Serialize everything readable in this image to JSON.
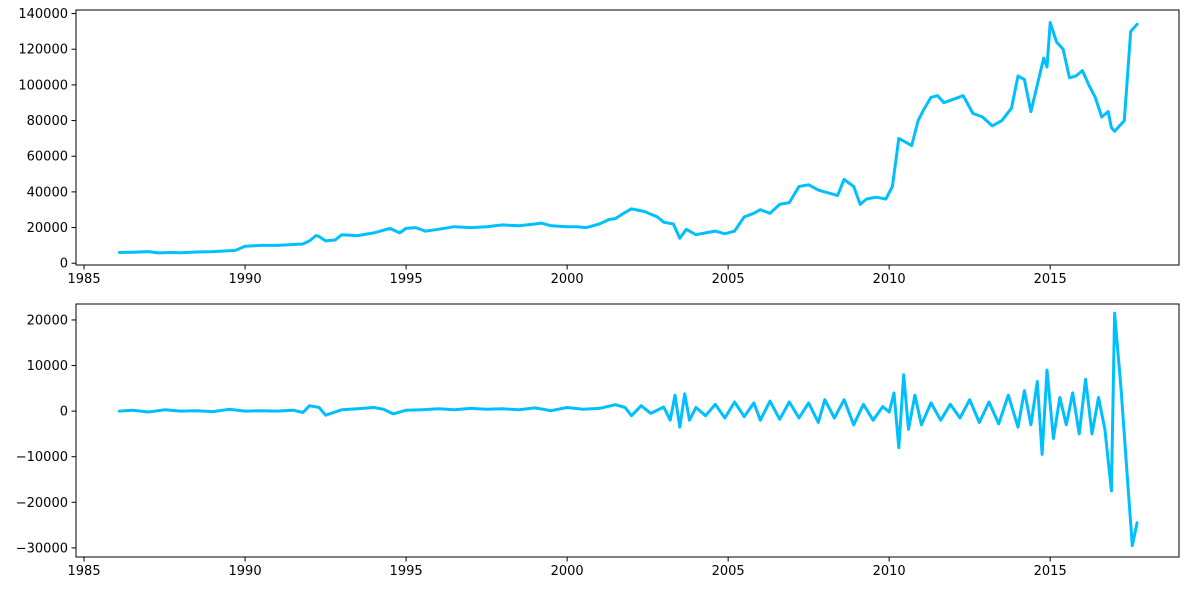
{
  "chart_data": [
    {
      "type": "line",
      "title": "",
      "xlabel": "",
      "ylabel": "",
      "xlim": [
        1984.75,
        2019.0
      ],
      "ylim": [
        -1000,
        142000
      ],
      "grid": false,
      "xticks": [
        1985,
        1990,
        1995,
        2000,
        2005,
        2010,
        2015
      ],
      "xtick_labels": [
        "1985",
        "1990",
        "1995",
        "2000",
        "2005",
        "2010",
        "2015"
      ],
      "yticks": [
        0,
        20000,
        40000,
        60000,
        80000,
        100000,
        120000,
        140000
      ],
      "ytick_labels": [
        "0",
        "20000",
        "40000",
        "60000",
        "80000",
        "100000",
        "120000",
        "140000"
      ],
      "series": [
        {
          "color": "#00BFFF",
          "x": [
            1986.1,
            1986.5,
            1987.0,
            1987.3,
            1987.7,
            1988.0,
            1988.5,
            1989.0,
            1989.5,
            1989.7,
            1990.0,
            1990.5,
            1991.0,
            1991.5,
            1991.8,
            1992.0,
            1992.2,
            1992.3,
            1992.5,
            1992.8,
            1993.0,
            1993.5,
            1994.0,
            1994.2,
            1994.5,
            1994.8,
            1995.0,
            1995.3,
            1995.6,
            1996.0,
            1996.5,
            1997.0,
            1997.5,
            1998.0,
            1998.5,
            1999.0,
            1999.2,
            1999.5,
            2000.0,
            2000.3,
            2000.6,
            2001.0,
            2001.3,
            2001.5,
            2001.8,
            2002.0,
            2002.4,
            2002.8,
            2003.0,
            2003.3,
            2003.5,
            2003.7,
            2004.0,
            2004.3,
            2004.6,
            2004.9,
            2005.2,
            2005.5,
            2005.8,
            2006.0,
            2006.3,
            2006.6,
            2006.9,
            2007.2,
            2007.5,
            2007.8,
            2008.0,
            2008.2,
            2008.4,
            2008.6,
            2008.9,
            2009.1,
            2009.3,
            2009.6,
            2009.9,
            2010.1,
            2010.3,
            2010.5,
            2010.7,
            2010.9,
            2011.1,
            2011.3,
            2011.5,
            2011.7,
            2012.0,
            2012.3,
            2012.6,
            2012.9,
            2013.2,
            2013.5,
            2013.8,
            2014.0,
            2014.2,
            2014.4,
            2014.6,
            2014.8,
            2014.9,
            2015.0,
            2015.2,
            2015.4,
            2015.6,
            2015.8,
            2016.0,
            2016.2,
            2016.4,
            2016.6,
            2016.8,
            2016.9,
            2017.0,
            2017.3,
            2017.5,
            2017.7
          ],
          "values": [
            6000,
            6200,
            6500,
            5800,
            6000,
            5900,
            6300,
            6500,
            7000,
            7200,
            9500,
            10000,
            10000,
            10500,
            10800,
            12500,
            15500,
            15000,
            12500,
            13000,
            16000,
            15500,
            17000,
            18000,
            19500,
            17000,
            19500,
            20000,
            18000,
            19000,
            20500,
            20000,
            20500,
            21500,
            21000,
            22000,
            22500,
            21000,
            20500,
            20500,
            20000,
            22000,
            24500,
            25000,
            28500,
            30500,
            29000,
            26000,
            23000,
            22000,
            14000,
            19000,
            16000,
            17000,
            18000,
            16500,
            18000,
            26000,
            28000,
            30000,
            28000,
            33000,
            34000,
            43000,
            44000,
            41000,
            40000,
            39000,
            38000,
            47000,
            43000,
            33000,
            36000,
            37000,
            36000,
            43000,
            70000,
            68000,
            66000,
            80000,
            87000,
            93000,
            94000,
            90000,
            92000,
            94000,
            84000,
            82000,
            77000,
            80000,
            87000,
            105000,
            103000,
            85000,
            100000,
            115000,
            110000,
            135000,
            124000,
            120000,
            104000,
            105000,
            108000,
            100000,
            93000,
            82000,
            85000,
            76000,
            74000,
            80000,
            130000,
            134000
          ]
        }
      ]
    },
    {
      "type": "line",
      "title": "",
      "xlabel": "",
      "ylabel": "",
      "xlim": [
        1984.75,
        2019.0
      ],
      "ylim": [
        -32000,
        23500
      ],
      "grid": false,
      "xticks": [
        1985,
        1990,
        1995,
        2000,
        2005,
        2010,
        2015
      ],
      "xtick_labels": [
        "1985",
        "1990",
        "1995",
        "2000",
        "2005",
        "2010",
        "2015"
      ],
      "yticks": [
        -30000,
        -20000,
        -10000,
        0,
        10000,
        20000
      ],
      "ytick_labels": [
        "−30000",
        "−20000",
        "−10000",
        "0",
        "10000",
        "20000"
      ],
      "series": [
        {
          "color": "#00BFFF",
          "x": [
            1986.1,
            1986.5,
            1987.0,
            1987.5,
            1988.0,
            1988.5,
            1989.0,
            1989.5,
            1990.0,
            1990.5,
            1991.0,
            1991.5,
            1991.8,
            1992.0,
            1992.3,
            1992.5,
            1993.0,
            1993.5,
            1994.0,
            1994.3,
            1994.6,
            1995.0,
            1995.5,
            1996.0,
            1996.5,
            1997.0,
            1997.5,
            1998.0,
            1998.5,
            1999.0,
            1999.5,
            2000.0,
            2000.5,
            2001.0,
            2001.5,
            2001.8,
            2002.0,
            2002.3,
            2002.6,
            2003.0,
            2003.2,
            2003.35,
            2003.5,
            2003.65,
            2003.8,
            2004.0,
            2004.3,
            2004.6,
            2004.9,
            2005.2,
            2005.5,
            2005.8,
            2006.0,
            2006.3,
            2006.6,
            2006.9,
            2007.2,
            2007.5,
            2007.8,
            2008.0,
            2008.3,
            2008.6,
            2008.9,
            2009.2,
            2009.5,
            2009.8,
            2010.0,
            2010.15,
            2010.3,
            2010.45,
            2010.6,
            2010.8,
            2011.0,
            2011.3,
            2011.6,
            2011.9,
            2012.2,
            2012.5,
            2012.8,
            2013.1,
            2013.4,
            2013.7,
            2014.0,
            2014.2,
            2014.4,
            2014.6,
            2014.75,
            2014.9,
            2015.1,
            2015.3,
            2015.5,
            2015.7,
            2015.9,
            2016.1,
            2016.3,
            2016.5,
            2016.7,
            2016.9,
            2017.0,
            2017.2,
            2017.4,
            2017.55,
            2017.7
          ],
          "values": [
            0,
            200,
            -200,
            300,
            0,
            100,
            -100,
            400,
            0,
            100,
            0,
            200,
            -300,
            1200,
            800,
            -900,
            300,
            500,
            800,
            400,
            -600,
            200,
            300,
            500,
            300,
            600,
            400,
            500,
            300,
            700,
            100,
            800,
            400,
            600,
            1400,
            800,
            -1000,
            1200,
            -500,
            900,
            -2000,
            3500,
            -3500,
            3800,
            -2000,
            800,
            -1000,
            1500,
            -1500,
            2000,
            -1200,
            1800,
            -2000,
            2200,
            -1800,
            2000,
            -1500,
            1800,
            -2500,
            2500,
            -1500,
            2500,
            -3000,
            1500,
            -2000,
            1000,
            -200,
            4000,
            -8000,
            8000,
            -4000,
            3500,
            -3000,
            1800,
            -2000,
            1500,
            -1500,
            2500,
            -2500,
            2000,
            -2800,
            3500,
            -3500,
            4500,
            -3000,
            6500,
            -9500,
            9000,
            -6000,
            3000,
            -3000,
            4000,
            -5000,
            7000,
            -5000,
            3000,
            -4000,
            -17500,
            21500,
            5000,
            -15000,
            -29500,
            -24500
          ]
        }
      ]
    }
  ]
}
